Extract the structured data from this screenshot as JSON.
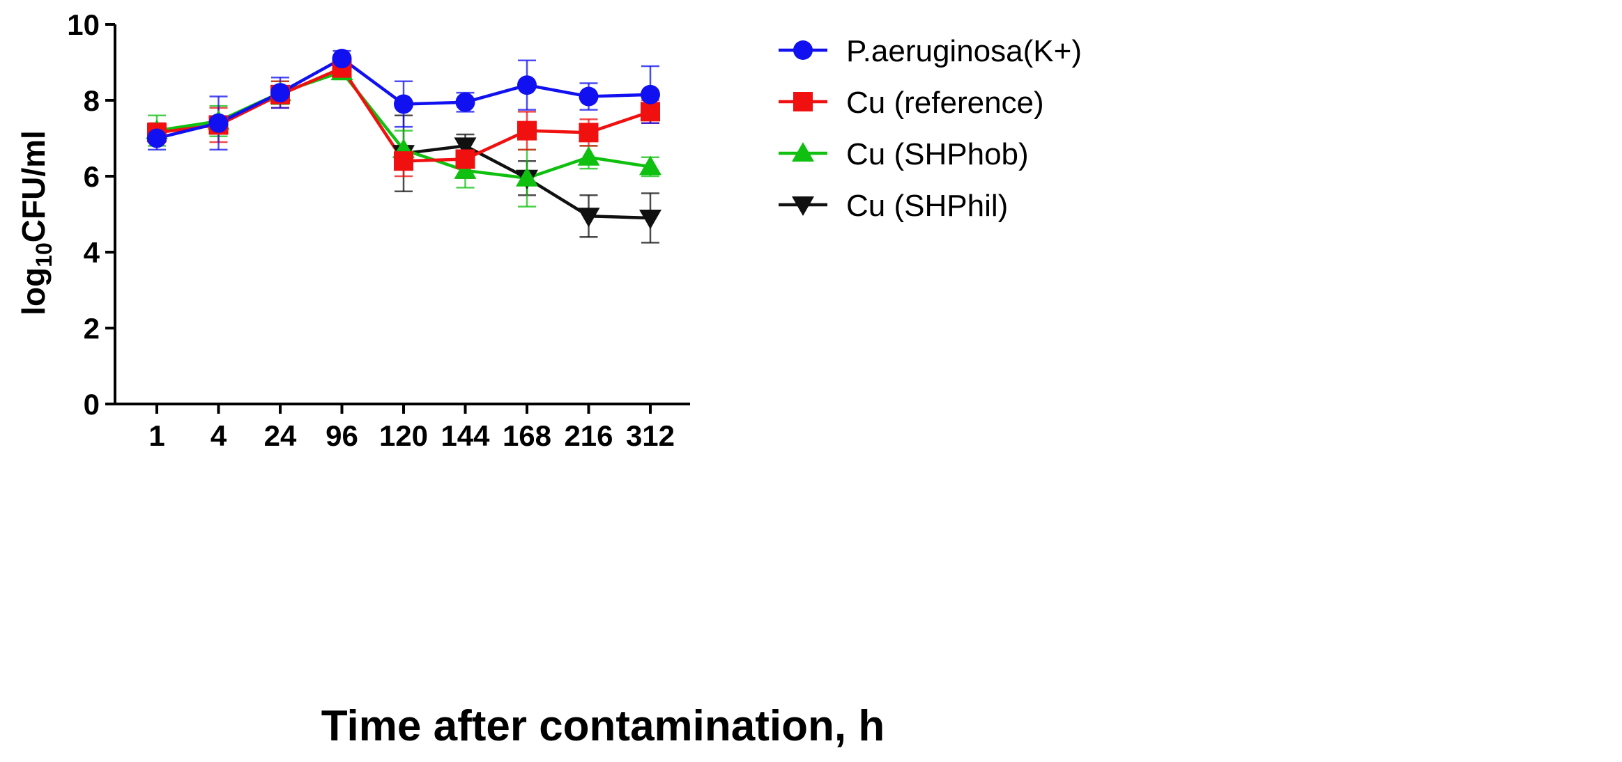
{
  "chart_data": {
    "type": "line",
    "title": "",
    "xlabel": "Time after contamination, h",
    "ylabel": {
      "prefix": "log",
      "subscript": "10",
      "suffix": "CFU/ml"
    },
    "categories": [
      "1",
      "4",
      "24",
      "96",
      "120",
      "144",
      "168",
      "216",
      "312"
    ],
    "ylim": [
      0,
      10
    ],
    "yticks": [
      0,
      2,
      4,
      6,
      8,
      10
    ],
    "grid": false,
    "legend_position": "right",
    "series": [
      {
        "name": "P.aeruginosa(K+)",
        "color": "#1010f0",
        "marker": "circle",
        "values": [
          7.0,
          7.4,
          8.2,
          9.1,
          7.9,
          7.95,
          8.4,
          8.1,
          8.15
        ],
        "errors": [
          0.3,
          0.7,
          0.4,
          0.2,
          0.6,
          0.25,
          0.65,
          0.35,
          0.75
        ]
      },
      {
        "name": "Cu (reference)",
        "color": "#f01010",
        "marker": "square",
        "values": [
          7.15,
          7.35,
          8.15,
          8.85,
          6.4,
          6.45,
          7.2,
          7.15,
          7.7
        ],
        "errors": [
          0.25,
          0.45,
          0.35,
          0.25,
          0.4,
          0.5,
          0.5,
          0.35,
          0.3
        ]
      },
      {
        "name": "Cu (SHPhob)",
        "color": "#10c010",
        "marker": "triangle-up",
        "values": [
          7.2,
          7.45,
          8.2,
          8.75,
          6.7,
          6.15,
          5.95,
          6.5,
          6.25
        ],
        "errors": [
          0.4,
          0.4,
          0.3,
          0.2,
          0.5,
          0.45,
          0.75,
          0.3,
          0.25
        ]
      },
      {
        "name": "Cu (SHPhil)",
        "color": "#101010",
        "marker": "triangle-down",
        "values": [
          null,
          null,
          null,
          null,
          6.6,
          6.8,
          5.95,
          4.95,
          4.9
        ],
        "errors": [
          null,
          null,
          null,
          null,
          1.0,
          0.3,
          0.45,
          0.55,
          0.65
        ]
      }
    ]
  }
}
